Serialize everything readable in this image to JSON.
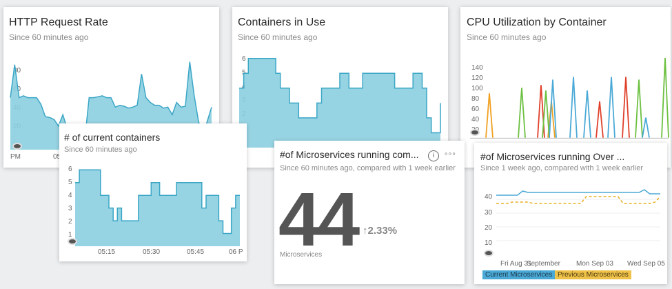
{
  "cards": {
    "http": {
      "title": "HTTP Request Rate",
      "subtitle": "Since 60 minutes ago",
      "x_ticks": [
        "PM",
        "05:"
      ]
    },
    "containers": {
      "title": "Containers in Use",
      "subtitle": "Since 60 minutes ago"
    },
    "cpu": {
      "title": "CPU Utilization by Container",
      "subtitle": "Since 60 minutes ago"
    },
    "current": {
      "title": "# of current containers",
      "subtitle": "Since 60 minutes ago",
      "x_ticks": [
        "05:15",
        "05:30",
        "05:45",
        "06 P"
      ]
    },
    "micro": {
      "title": "#of Microservices running com...",
      "subtitle": "Since 60 minutes ago, compared with 1 week earlier",
      "value": "44",
      "change": "2.33%",
      "units": "Microservices",
      "info_icon": "info-icon",
      "more_icon": "more-icon"
    },
    "over": {
      "title": "#of Microservices running Over ...",
      "subtitle": "Since 1 week ago, compared with 1 week earlier",
      "x_ticks": [
        "Fri Aug 31",
        "September",
        "Mon Sep 03",
        "Wed Sep 05"
      ],
      "legend": [
        "Current Microservices",
        "Previous Microservices"
      ]
    }
  },
  "colors": {
    "area_fill": "#8ccfe0",
    "area_line": "#3aa6c6",
    "current": "#4aa9d6",
    "previous": "#e8b020",
    "cpu_orange": "#f0a020",
    "cpu_red": "#e0402a",
    "cpu_green": "#6cc040",
    "cpu_blue": "#4aa9d6"
  },
  "chart_data": [
    {
      "type": "area",
      "name": "HTTP Request Rate",
      "y_ticks": [
        "20",
        "40",
        "60",
        "80"
      ],
      "ylim": [
        0,
        100
      ],
      "values": [
        55,
        90,
        55,
        57,
        55,
        55,
        55,
        48,
        35,
        34,
        32,
        25,
        37,
        22,
        10,
        5,
        20,
        10,
        55,
        55,
        56,
        57,
        55,
        55,
        45,
        47,
        46,
        44,
        45,
        47,
        80,
        55,
        50,
        47,
        47,
        44,
        45,
        37,
        50,
        45,
        46,
        93,
        58,
        30,
        15,
        30,
        45
      ]
    },
    {
      "type": "area",
      "name": "Containers in Use",
      "y_ticks": [
        "1",
        "2",
        "3",
        "4",
        "5",
        "6"
      ],
      "ylim": [
        0,
        6.5
      ],
      "values": [
        4,
        5,
        6,
        6,
        6,
        6,
        6,
        6,
        5,
        4,
        4,
        3,
        3,
        2,
        2,
        2,
        2,
        3,
        4,
        4,
        4,
        4,
        5,
        5,
        4,
        4,
        4,
        5,
        5,
        5,
        5,
        5,
        5,
        5,
        4,
        4,
        4,
        4,
        5,
        5,
        4,
        2,
        1,
        1,
        3
      ]
    },
    {
      "type": "line",
      "name": "CPU Utilization by Container",
      "y_ticks": [
        "20",
        "40",
        "60",
        "80",
        "100",
        "120",
        "140"
      ],
      "ylim": [
        0,
        150
      ]
    },
    {
      "type": "area",
      "name": "# of current containers",
      "y_ticks": [
        "1",
        "2",
        "3",
        "4",
        "5",
        "6"
      ],
      "ylim": [
        0,
        6.5
      ],
      "values": [
        5,
        6,
        6,
        6,
        6,
        6,
        4,
        4,
        3,
        2,
        3,
        2,
        2,
        2,
        2,
        4,
        4,
        4,
        5,
        5,
        4,
        4,
        4,
        4,
        5,
        5,
        5,
        5,
        5,
        5,
        3,
        4,
        4,
        4,
        2,
        1,
        1,
        3,
        4,
        4
      ]
    },
    {
      "type": "line",
      "name": "#of Microservices running Over",
      "y_ticks": [
        "10",
        "20",
        "30",
        "40"
      ],
      "ylim": [
        0,
        50
      ],
      "series": [
        {
          "name": "Current Microservices",
          "values": [
            43,
            43,
            43,
            43,
            43,
            46,
            45,
            45,
            45,
            45,
            45,
            45,
            45,
            45,
            45,
            45,
            45,
            45,
            45,
            45,
            45,
            45,
            45,
            45,
            45,
            45,
            45,
            45,
            47,
            44,
            44,
            44
          ]
        },
        {
          "name": "Previous Microservices",
          "values": [
            37,
            37,
            37,
            38,
            38,
            38,
            38,
            37,
            37,
            37,
            37,
            37,
            37,
            37,
            37,
            37,
            37,
            42,
            42,
            42,
            42,
            42,
            42,
            42,
            37,
            37,
            37,
            37,
            37,
            37,
            38,
            42
          ]
        }
      ]
    }
  ]
}
